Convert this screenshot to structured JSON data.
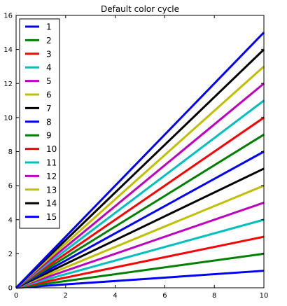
{
  "chart_data": {
    "type": "line",
    "title": "Default color cycle",
    "xlabel": "",
    "ylabel": "",
    "xlim": [
      0,
      10
    ],
    "ylim": [
      0,
      16
    ],
    "xticks": [
      0,
      2,
      4,
      6,
      8,
      10
    ],
    "yticks": [
      0,
      2,
      4,
      6,
      8,
      10,
      12,
      14,
      16
    ],
    "xtick_labels": [
      "0",
      "2",
      "4",
      "6",
      "8",
      "10"
    ],
    "ytick_labels": [
      "0",
      "2",
      "4",
      "6",
      "8",
      "10",
      "12",
      "14",
      "16"
    ],
    "grid": false,
    "legend_position": "upper-left",
    "x": [
      0,
      10
    ],
    "series": [
      {
        "name": "1",
        "color": "#0000ff",
        "values": [
          0,
          1
        ]
      },
      {
        "name": "2",
        "color": "#008000",
        "values": [
          0,
          2
        ]
      },
      {
        "name": "3",
        "color": "#ff0000",
        "values": [
          0,
          3
        ]
      },
      {
        "name": "4",
        "color": "#00bfbf",
        "values": [
          0,
          4
        ]
      },
      {
        "name": "5",
        "color": "#bf00bf",
        "values": [
          0,
          5
        ]
      },
      {
        "name": "6",
        "color": "#bfbf00",
        "values": [
          0,
          6
        ]
      },
      {
        "name": "7",
        "color": "#000000",
        "values": [
          0,
          7
        ]
      },
      {
        "name": "8",
        "color": "#0000ff",
        "values": [
          0,
          8
        ]
      },
      {
        "name": "9",
        "color": "#008000",
        "values": [
          0,
          9
        ]
      },
      {
        "name": "10",
        "color": "#ff0000",
        "values": [
          0,
          10
        ]
      },
      {
        "name": "11",
        "color": "#00bfbf",
        "values": [
          0,
          11
        ]
      },
      {
        "name": "12",
        "color": "#bf00bf",
        "values": [
          0,
          12
        ]
      },
      {
        "name": "13",
        "color": "#bfbf00",
        "values": [
          0,
          13
        ]
      },
      {
        "name": "14",
        "color": "#000000",
        "values": [
          0,
          14
        ]
      },
      {
        "name": "15",
        "color": "#0000ff",
        "values": [
          0,
          15
        ]
      }
    ]
  }
}
